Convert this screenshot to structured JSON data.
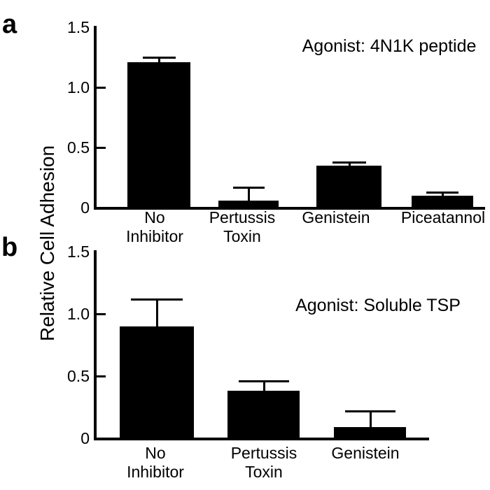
{
  "figure": {
    "y_axis_label": "Relative Cell Adhesion",
    "ink_color": "#000000",
    "background_color": "#ffffff"
  },
  "panels": [
    {
      "label": "a"
    },
    {
      "label": "b"
    }
  ],
  "chart_data": [
    {
      "type": "bar",
      "panel": "a",
      "title": "Agonist: 4N1K peptide",
      "categories": [
        "No Inhibitor",
        "Pertussis Toxin",
        "Genistein",
        "Piceatannol"
      ],
      "categories_display": [
        [
          "No",
          "Inhibitor"
        ],
        [
          "Pertussis",
          "Toxin"
        ],
        [
          "Genistein"
        ],
        [
          "Piceatannol"
        ]
      ],
      "values": [
        1.21,
        0.06,
        0.35,
        0.1
      ],
      "error_plus": [
        0.04,
        0.11,
        0.03,
        0.03
      ],
      "xlabel": "",
      "ylabel": "Relative Cell Adhesion",
      "ylim": [
        0,
        1.5
      ],
      "yticks": [
        1.5,
        1.0,
        0.5,
        0
      ],
      "ytick_labels": [
        "1.5",
        "1.0",
        "0.5",
        "0"
      ],
      "grid": false,
      "legend": null,
      "bar_color": "#000000",
      "background_color": "#ffffff"
    },
    {
      "type": "bar",
      "panel": "b",
      "title": "Agonist: Soluble TSP",
      "categories": [
        "No Inhibitor",
        "Pertussis Toxin",
        "Genistein"
      ],
      "categories_display": [
        [
          "No",
          "Inhibitor"
        ],
        [
          "Pertussis",
          "Toxin"
        ],
        [
          "Genistein"
        ]
      ],
      "values": [
        0.9,
        0.38,
        0.09
      ],
      "error_plus": [
        0.22,
        0.08,
        0.13
      ],
      "xlabel": "",
      "ylabel": "Relative Cell Adhesion",
      "ylim": [
        0,
        1.5
      ],
      "yticks": [
        1.5,
        1.0,
        0.5,
        0
      ],
      "ytick_labels": [
        "1.5",
        "1.0",
        "0.5",
        "0"
      ],
      "grid": false,
      "legend": null,
      "bar_color": "#000000",
      "background_color": "#ffffff"
    }
  ]
}
